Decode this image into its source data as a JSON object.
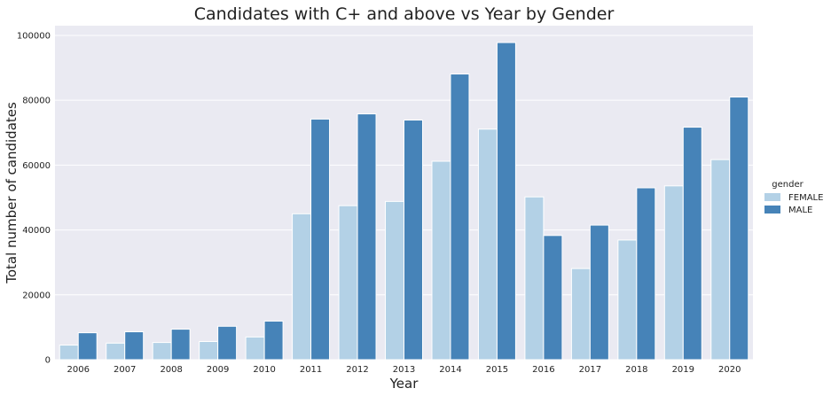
{
  "chart_data": {
    "type": "bar",
    "title": "Candidates with C+ and above vs Year by Gender",
    "xlabel": "Year",
    "ylabel": "Total number of candidates",
    "categories": [
      "2006",
      "2007",
      "2008",
      "2009",
      "2010",
      "2011",
      "2012",
      "2013",
      "2014",
      "2015",
      "2016",
      "2017",
      "2018",
      "2019",
      "2020"
    ],
    "series": [
      {
        "name": "FEMALE",
        "color": "#b3d1e6",
        "values": [
          4500,
          5100,
          5300,
          5600,
          7000,
          45000,
          47500,
          48800,
          61200,
          71100,
          50200,
          28100,
          36900,
          53600,
          61700
        ]
      },
      {
        "name": "MALE",
        "color": "#4683b8",
        "values": [
          8300,
          8600,
          9400,
          10300,
          11900,
          74200,
          75800,
          73900,
          88100,
          97800,
          38300,
          41500,
          53000,
          71700,
          81000
        ]
      }
    ],
    "ylim": [
      0,
      103000
    ],
    "yticks": [
      0,
      20000,
      40000,
      60000,
      80000,
      100000
    ],
    "ytick_labels": [
      "0",
      "20000",
      "40000",
      "60000",
      "80000",
      "100000"
    ],
    "grid": true,
    "background": "#eaeaf2",
    "legend": {
      "title": "gender",
      "position": "right"
    }
  }
}
